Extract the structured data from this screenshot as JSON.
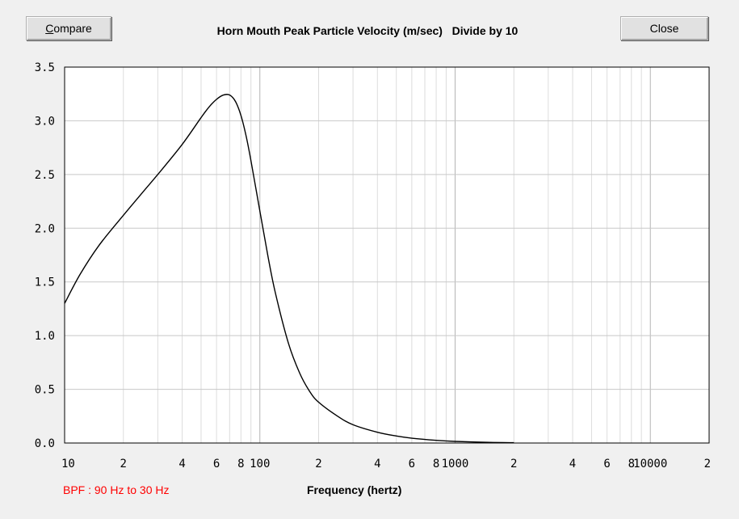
{
  "window": {
    "compare_label": "Compare",
    "close_label": "Close",
    "bpf_note": "BPF : 90 Hz to 30 Hz",
    "bpf_color": "#ff0000"
  },
  "chart_data": {
    "type": "line",
    "title": "Horn Mouth Peak Particle Velocity (m/sec)   Divide by 10",
    "xlabel": "Frequency (hertz)",
    "ylabel": "",
    "x_scale": "log",
    "xlim": [
      10,
      20000
    ],
    "ylim": [
      0,
      3.5
    ],
    "grid": true,
    "yticks": [
      0.0,
      0.5,
      1.0,
      1.5,
      2.0,
      2.5,
      3.0,
      3.5
    ],
    "ytick_labels": [
      "0.0",
      "0.5",
      "1.0",
      "1.5",
      "2.0",
      "2.5",
      "3.0",
      "3.5"
    ],
    "xticks": [
      10,
      20,
      40,
      60,
      80,
      100,
      200,
      400,
      600,
      800,
      1000,
      2000,
      4000,
      6000,
      8000,
      10000,
      20000
    ],
    "xtick_labels": [
      "10",
      "2",
      "4",
      "6",
      "8",
      "100",
      "2",
      "4",
      "6",
      "8",
      "1000",
      "2",
      "4",
      "6",
      "8",
      "10000",
      "2"
    ],
    "series": [
      {
        "color": "#000000",
        "x": [
          10,
          12,
          15,
          20,
          25,
          30,
          40,
          50,
          55,
          60,
          65,
          70,
          75,
          80,
          85,
          90,
          100,
          110,
          120,
          140,
          160,
          180,
          200,
          250,
          300,
          400,
          500,
          600,
          800,
          1000,
          1500,
          2000
        ],
        "y": [
          1.3,
          1.57,
          1.84,
          2.12,
          2.33,
          2.5,
          2.78,
          3.03,
          3.13,
          3.2,
          3.24,
          3.24,
          3.18,
          3.05,
          2.86,
          2.63,
          2.16,
          1.74,
          1.4,
          0.93,
          0.65,
          0.48,
          0.38,
          0.25,
          0.17,
          0.1,
          0.065,
          0.045,
          0.025,
          0.015,
          0.006,
          0.003
        ]
      }
    ]
  }
}
